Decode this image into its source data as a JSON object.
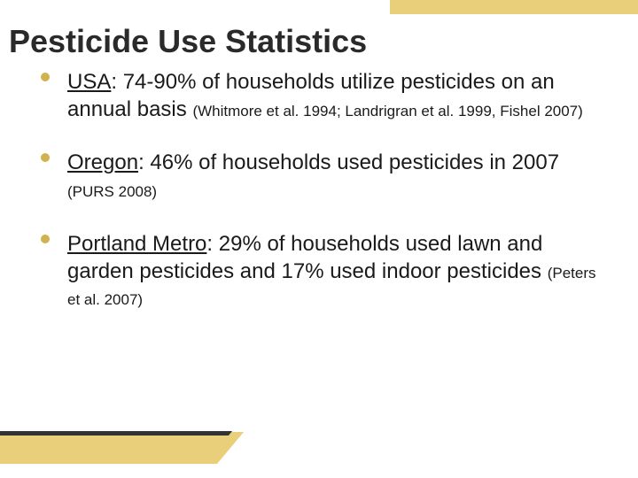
{
  "title": "Pesticide Use Statistics",
  "accent": {
    "gold": "#e9cf79",
    "dark": "#333333",
    "bullet": "#d1b24f"
  },
  "items": [
    {
      "region": "USA",
      "main": ":  74-90% of households utilize pesticides on an annual basis ",
      "citation": "(Whitmore et al. 1994; Landrigran et al. 1999, Fishel 2007)"
    },
    {
      "region": "Oregon",
      "main": ": 46% of households used pesticides in 2007 ",
      "citation": "(PURS 2008)"
    },
    {
      "region": "Portland Metro",
      "main": ": 29% of households used lawn and garden pesticides and 17% used indoor pesticides ",
      "citation": "(Peters et al. 2007)"
    }
  ]
}
